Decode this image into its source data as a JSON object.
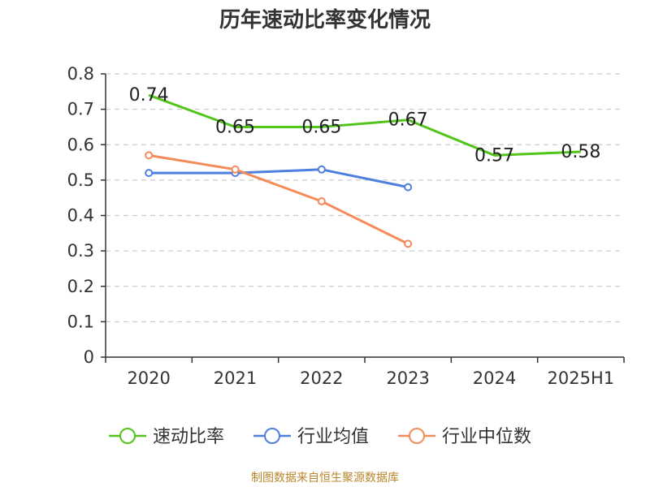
{
  "chart_data": {
    "type": "line",
    "title": "历年速动比率变化情况",
    "categories": [
      "2020",
      "2021",
      "2022",
      "2023",
      "2024",
      "2025H1"
    ],
    "ylim": [
      0,
      0.8
    ],
    "yticks": [
      "0",
      "0.1",
      "0.2",
      "0.3",
      "0.4",
      "0.5",
      "0.6",
      "0.7",
      "0.8"
    ],
    "grid": true,
    "legend_position": "bottom",
    "series": [
      {
        "name": "速动比率",
        "color": "#52c41a",
        "marker": "none",
        "show_labels": true,
        "values": [
          0.74,
          0.65,
          0.65,
          0.67,
          0.57,
          0.58
        ],
        "labels": [
          "0.74",
          "0.65",
          "0.65",
          "0.67",
          "0.57",
          "0.58"
        ]
      },
      {
        "name": "行业均值",
        "color": "#4e7fde",
        "marker": "circle",
        "show_labels": false,
        "values": [
          0.52,
          0.52,
          0.53,
          0.48,
          null,
          null
        ]
      },
      {
        "name": "行业中位数",
        "color": "#f48c5a",
        "marker": "circle",
        "show_labels": false,
        "values": [
          0.57,
          0.53,
          0.44,
          0.32,
          null,
          null
        ]
      }
    ]
  },
  "footer": {
    "source": "制图数据来自恒生聚源数据库"
  }
}
